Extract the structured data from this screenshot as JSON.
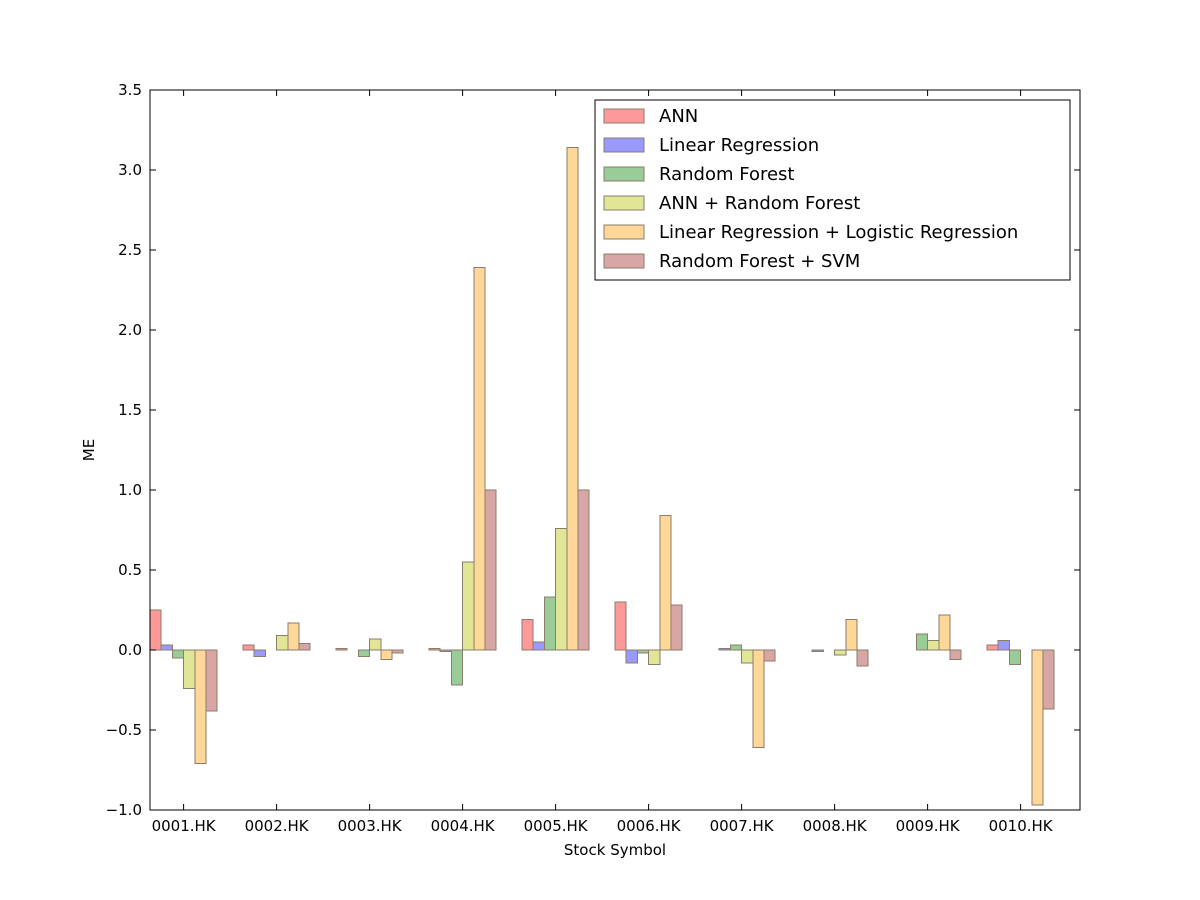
{
  "chart_data": {
    "type": "bar",
    "xlabel": "Stock Symbol",
    "ylabel": "ME",
    "ylim": [
      -1.0,
      3.5
    ],
    "yticks": [
      "−1.0",
      "−0.5",
      "0.0",
      "0.5",
      "1.0",
      "1.5",
      "2.0",
      "2.5",
      "3.0",
      "3.5"
    ],
    "ytick_values": [
      -1.0,
      -0.5,
      0.0,
      0.5,
      1.0,
      1.5,
      2.0,
      2.5,
      3.0,
      3.5
    ],
    "grid": false,
    "legend_position": "top-right",
    "categories": [
      "0001.HK",
      "0002.HK",
      "0003.HK",
      "0004.HK",
      "0005.HK",
      "0006.HK",
      "0007.HK",
      "0008.HK",
      "0009.HK",
      "0010.HK"
    ],
    "series": [
      {
        "name": "ANN",
        "color": "#ff9999",
        "values": [
          0.25,
          0.03,
          0.01,
          0.01,
          0.19,
          0.3,
          0.0,
          0.0,
          0.0,
          0.03
        ]
      },
      {
        "name": "Linear Regression",
        "color": "#9999ff",
        "values": [
          0.03,
          -0.04,
          0.0,
          -0.01,
          0.05,
          -0.08,
          0.01,
          -0.01,
          0.0,
          0.06
        ]
      },
      {
        "name": "Random Forest",
        "color": "#99cc99",
        "values": [
          -0.05,
          0.0,
          -0.04,
          -0.22,
          0.33,
          -0.02,
          0.03,
          0.0,
          0.1,
          -0.09
        ]
      },
      {
        "name": "ANN + Random Forest",
        "color": "#e1e596",
        "values": [
          -0.24,
          0.09,
          0.07,
          0.55,
          0.76,
          -0.09,
          -0.08,
          -0.03,
          0.06,
          0.0
        ]
      },
      {
        "name": "Linear Regression + Logistic Regression",
        "color": "#ffd799",
        "values": [
          -0.71,
          0.17,
          -0.06,
          2.39,
          3.14,
          0.84,
          -0.61,
          0.19,
          0.22,
          -0.97
        ]
      },
      {
        "name": "Random Forest + SVM",
        "color": "#d9a6a6",
        "values": [
          -0.38,
          0.04,
          -0.02,
          1.0,
          1.0,
          0.28,
          -0.07,
          -0.1,
          -0.06,
          -0.37
        ]
      }
    ]
  }
}
